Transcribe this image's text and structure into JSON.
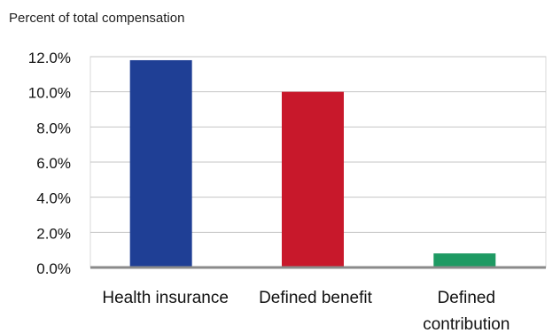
{
  "chart_data": {
    "type": "bar",
    "title": "Percent of total compensation",
    "xlabel": "",
    "ylabel": "",
    "categories": [
      "Health insurance",
      "Defined benefit",
      "Defined contribution"
    ],
    "category_label_lines": [
      [
        "Health insurance"
      ],
      [
        "Defined benefit"
      ],
      [
        "Defined",
        "contribution"
      ]
    ],
    "series": [
      {
        "values": [
          11.8,
          10.0,
          0.8
        ]
      }
    ],
    "bar_colors": [
      "#1f3f95",
      "#c8182b",
      "#1e9a63"
    ],
    "ylim": [
      0,
      12
    ],
    "yticks": [
      0,
      2,
      4,
      6,
      8,
      10,
      12
    ],
    "ytick_labels": [
      "0.0%",
      "2.0%",
      "4.0%",
      "6.0%",
      "8.0%",
      "10.0%",
      "12.0%"
    ],
    "grid": true,
    "legend": "none"
  }
}
